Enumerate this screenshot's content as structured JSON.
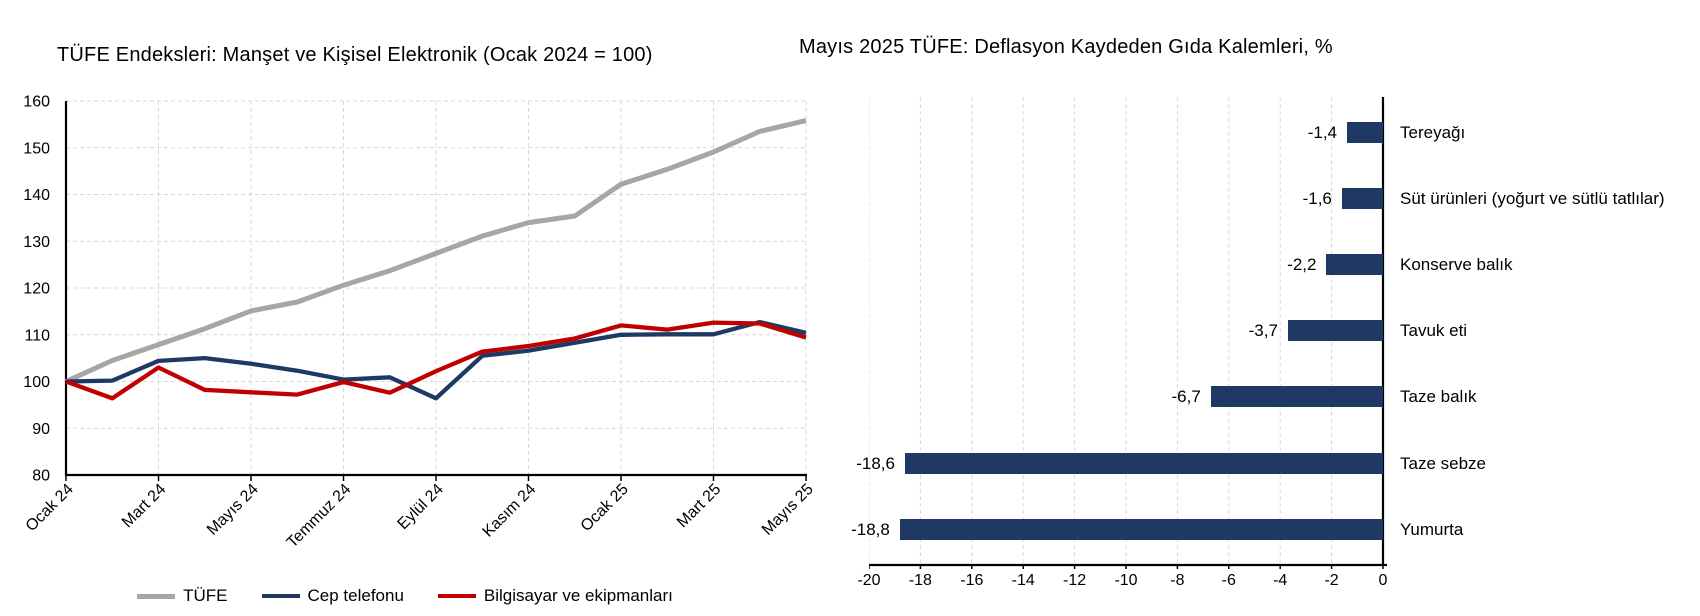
{
  "page": {
    "background": "#ffffff",
    "accent_navy": "#1F3864",
    "accent_red": "#C00000",
    "accent_gray": "#A6A6A6",
    "gridline_color": "#D9D9D9",
    "axis_color": "#000000"
  },
  "chart_data": [
    {
      "type": "line",
      "title": "TÜFE Endeksleri: Manşet ve Kişisel Elektronik (Ocak 2024 = 100)",
      "n_points": 17,
      "x_tick_labels": [
        "Ocak 24",
        "Mart 24",
        "Mayıs 24",
        "Temmuz 24",
        "Eylül 24",
        "Kasım 24",
        "Ocak 25",
        "Mart 25",
        "Mayıs 25"
      ],
      "x_tick_every": 2,
      "ylim": [
        80,
        160
      ],
      "y_tick_step": 10,
      "grid": "dashed",
      "legend_position": "bottom",
      "series": [
        {
          "name": "TÜFE",
          "color": "#A6A6A6",
          "values": [
            100,
            104.5,
            107.9,
            111.3,
            115.1,
            117.0,
            120.6,
            123.7,
            127.4,
            131.1,
            134.0,
            135.4,
            142.2,
            145.4,
            149.1,
            153.5,
            155.8
          ]
        },
        {
          "name": "Cep telefonu",
          "color": "#1F3864",
          "values": [
            100,
            100.2,
            104.4,
            105.0,
            103.8,
            102.3,
            100.4,
            100.9,
            96.4,
            105.5,
            106.6,
            108.3,
            110.0,
            110.1,
            110.1,
            112.7,
            110.4
          ]
        },
        {
          "name": "Bilgisayar ve ekipmanları",
          "color": "#C00000",
          "values": [
            100,
            96.4,
            103.0,
            98.2,
            97.7,
            97.2,
            99.9,
            97.6,
            102.2,
            106.4,
            107.6,
            109.2,
            112.0,
            111.1,
            112.6,
            112.4,
            109.4
          ]
        }
      ]
    },
    {
      "type": "bar",
      "orientation": "horizontal",
      "title": "Mayıs 2025 TÜFE: Deflasyon Kaydeden Gıda Kalemleri, %",
      "categories": [
        "Tereyağı",
        "Süt ürünleri (yoğurt ve sütlü tatlılar)",
        "Konserve balık",
        "Tavuk eti",
        "Taze balık",
        "Taze sebze",
        "Yumurta"
      ],
      "values": [
        -1.4,
        -1.6,
        -2.2,
        -3.7,
        -6.7,
        -18.6,
        -18.8
      ],
      "value_labels": [
        "-1,4",
        "-1,6",
        "-2,2",
        "-3,7",
        "-6,7",
        "-18,6",
        "-18,8"
      ],
      "xlim": [
        -20,
        0
      ],
      "x_ticks": [
        "-20",
        "-18",
        "-16",
        "-14",
        "-12",
        "-10",
        "-8",
        "-6",
        "-4",
        "-2",
        "0"
      ],
      "bar_color": "#1F3864",
      "grid": "vertical-dashed"
    }
  ]
}
